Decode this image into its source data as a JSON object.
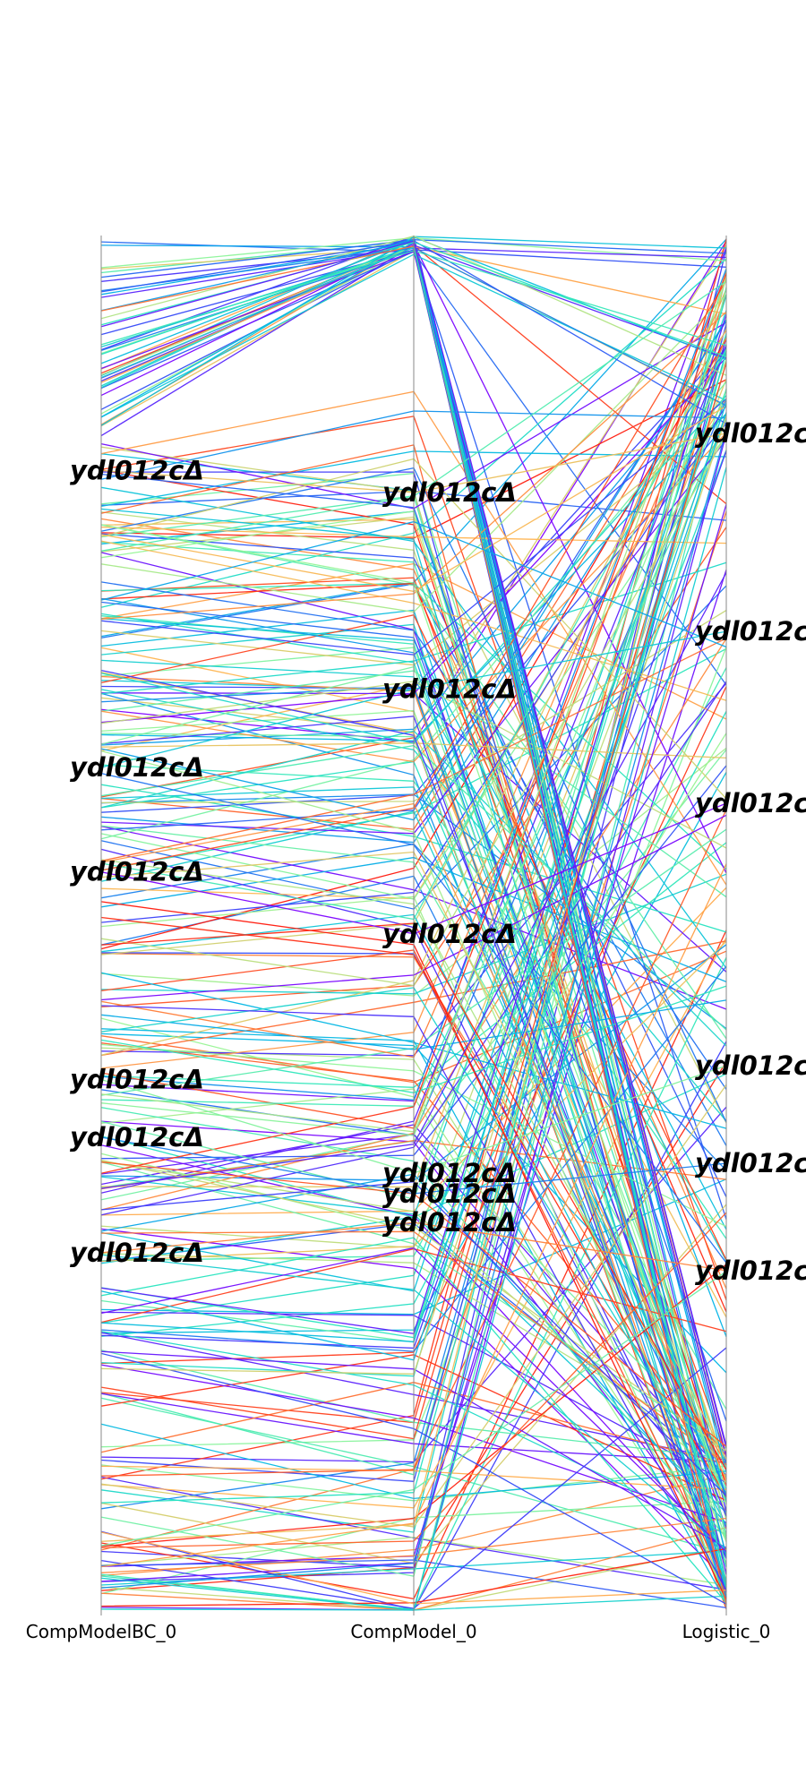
{
  "chart_data": {
    "type": "parallel_coordinates",
    "title": "",
    "axes": [
      "CompModelBC_0",
      "CompModel_0",
      "Logistic_0"
    ],
    "value_range": [
      0,
      1
    ],
    "line_count": 320,
    "colormap": "rainbow",
    "highlight_label": "ydl012cΔ",
    "highlights": [
      {
        "label": "ydl012cΔ",
        "values": [
          0.829,
          0.813,
          0.856
        ]
      },
      {
        "label": "ydl012cΔ",
        "values": [
          0.613,
          0.67,
          0.712
        ]
      },
      {
        "label": "ydl012cΔ",
        "values": [
          0.537,
          0.492,
          0.587
        ]
      },
      {
        "label": "ydl012cΔ",
        "values": [
          0.386,
          0.318,
          0.396
        ]
      },
      {
        "label": "ydl012cΔ",
        "values": [
          0.344,
          0.303,
          0.325
        ]
      },
      {
        "label": "ydl012cΔ",
        "values": [
          0.26,
          0.282,
          0.247
        ]
      }
    ]
  }
}
